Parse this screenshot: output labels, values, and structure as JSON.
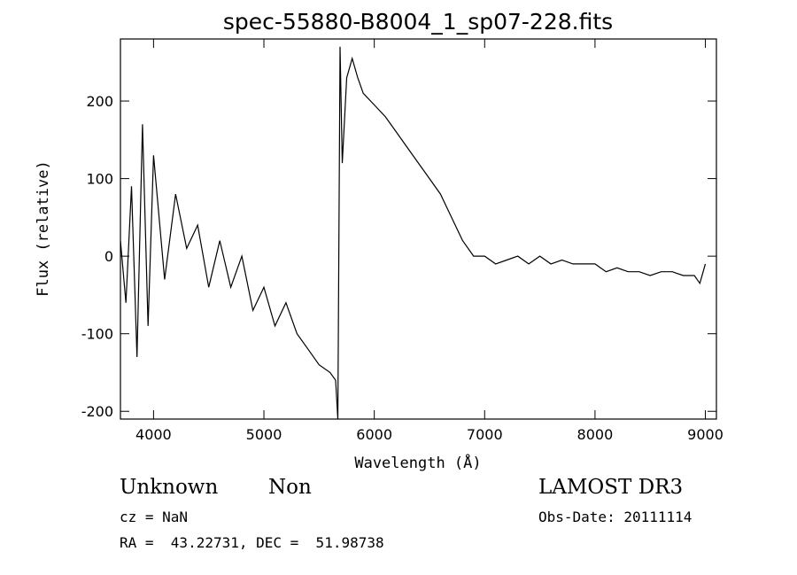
{
  "chart_data": {
    "type": "line",
    "title": "spec-55880-B8004_1_sp07-228.fits",
    "xlabel": "Wavelength (Å)",
    "ylabel": "Flux (relative)",
    "xlim": [
      3700,
      9100
    ],
    "ylim": [
      -210,
      280
    ],
    "xticks": [
      4000,
      5000,
      6000,
      7000,
      8000,
      9000
    ],
    "yticks": [
      -200,
      -100,
      0,
      100,
      200
    ],
    "grid": false,
    "legend": "none",
    "line_color": "#000000",
    "series": [
      {
        "x": [
          3700,
          3750,
          3800,
          3850,
          3900,
          3950,
          4000,
          4100,
          4200,
          4300,
          4400,
          4500,
          4600,
          4700,
          4800,
          4900,
          5000,
          5100,
          5200,
          5300,
          5400,
          5500,
          5600,
          5650,
          5670,
          5690,
          5710,
          5750,
          5800,
          5850,
          5900,
          6000,
          6100,
          6200,
          6300,
          6400,
          6500,
          6600,
          6700,
          6800,
          6900,
          7000,
          7100,
          7200,
          7300,
          7400,
          7500,
          7600,
          7700,
          7800,
          7900,
          8000,
          8100,
          8200,
          8300,
          8400,
          8500,
          8600,
          8700,
          8800,
          8900,
          8950,
          9000
        ],
        "y": [
          20,
          -60,
          90,
          -130,
          170,
          -90,
          130,
          -30,
          80,
          10,
          40,
          -40,
          20,
          -40,
          0,
          -70,
          -40,
          -90,
          -60,
          -100,
          -120,
          -140,
          -150,
          -160,
          -210,
          270,
          120,
          230,
          255,
          230,
          210,
          195,
          180,
          160,
          140,
          120,
          100,
          80,
          50,
          20,
          0,
          0,
          -10,
          -5,
          0,
          -10,
          0,
          -10,
          -5,
          -10,
          -10,
          -10,
          -20,
          -15,
          -20,
          -20,
          -25,
          -20,
          -20,
          -25,
          -25,
          -35,
          -10
        ]
      }
    ]
  },
  "info": {
    "class": "Unknown",
    "subclass": "Non",
    "cz": "cz = NaN",
    "coords": "RA =  43.22731, DEC =  51.98738",
    "survey": "LAMOST DR3",
    "obs_date": "Obs-Date: 20111114"
  }
}
